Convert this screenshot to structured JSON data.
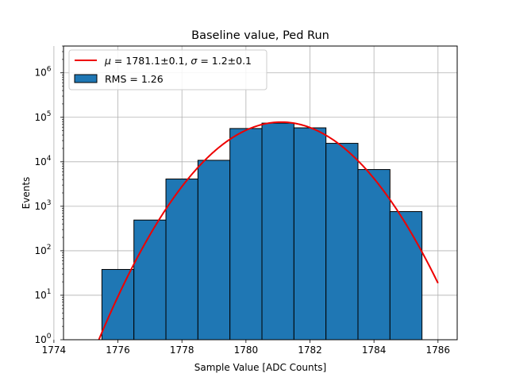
{
  "chart_data": {
    "type": "bar",
    "title": "Baseline value, Ped Run",
    "xlabel": "Sample Value [ADC Counts]",
    "ylabel": "Events",
    "xlim": [
      1774.3,
      1786.6
    ],
    "ylim": [
      1,
      4000000
    ],
    "yscale": "log",
    "grid": true,
    "legend_position": "top-left",
    "x_ticks": [
      1774,
      1776,
      1778,
      1780,
      1782,
      1784,
      1786
    ],
    "y_ticks": [
      {
        "value": 1,
        "base": "10",
        "exp": "0"
      },
      {
        "value": 10,
        "base": "10",
        "exp": "1"
      },
      {
        "value": 100,
        "base": "10",
        "exp": "2"
      },
      {
        "value": 1000,
        "base": "10",
        "exp": "3"
      },
      {
        "value": 10000,
        "base": "10",
        "exp": "4"
      },
      {
        "value": 100000,
        "base": "10",
        "exp": "5"
      },
      {
        "value": 1000000,
        "base": "10",
        "exp": "6"
      }
    ],
    "histogram": {
      "name": "RMS = 1.26",
      "color": "#1f77b4",
      "edge_color": "#000000",
      "bin_edges": [
        1774.5,
        1775.5,
        1776.5,
        1777.5,
        1778.5,
        1779.5,
        1780.5,
        1781.5,
        1782.5,
        1783.5,
        1784.5,
        1785.5
      ],
      "counts": [
        1,
        38,
        490,
        4100,
        10800,
        56000,
        74000,
        58000,
        26000,
        6700,
        760
      ]
    },
    "fit": {
      "name": "$\\mu = 1781.1\\pm0.1$, $\\sigma = 1.2\\pm0.1$",
      "legend_parts": {
        "mu": "μ",
        "mu_value": " = 1781.1±0.1, ",
        "sigma": "σ",
        "sigma_value": " = 1.2±0.1"
      },
      "color": "#ee0000",
      "type": "gaussian",
      "amplitude": 78000,
      "mu": 1781.1,
      "sigma": 1.2,
      "x_range": [
        1774.5,
        1786
      ]
    }
  }
}
